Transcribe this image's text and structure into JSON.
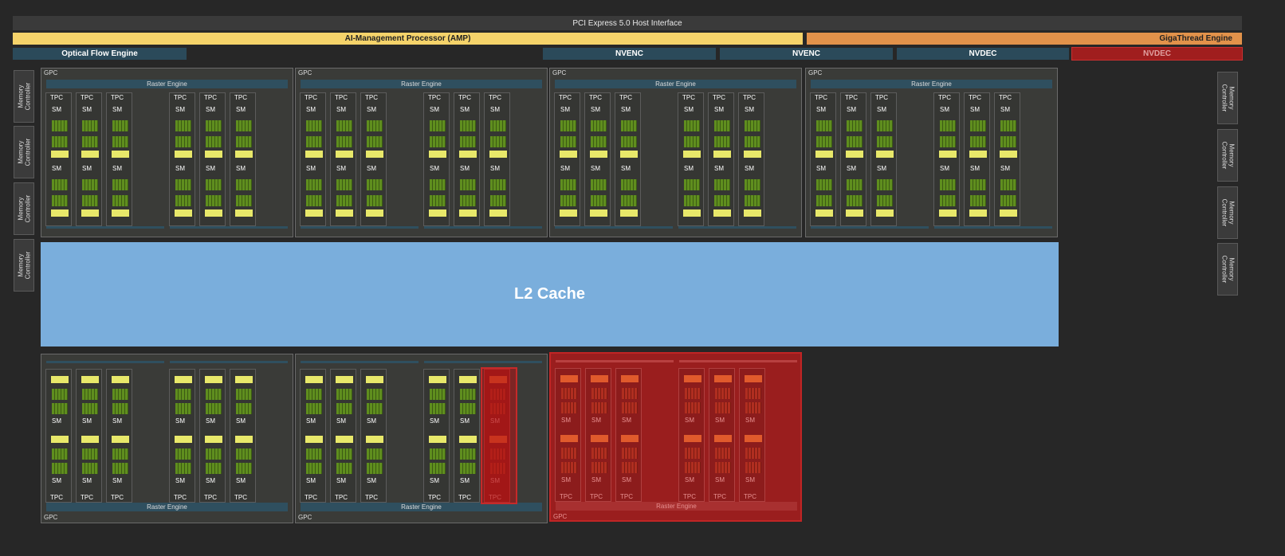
{
  "top": {
    "pcie": "PCI Express 5.0 Host Interface",
    "amp": "AI-Management Processor (AMP)",
    "gigathread": "GigaThread Engine",
    "optical_flow": "Optical Flow Engine",
    "engines": [
      "NVENC",
      "NVENC",
      "NVDEC",
      "NVDEC"
    ]
  },
  "memory_controller": "Memory\nController",
  "l2": "L2 Cache",
  "labels": {
    "gpc": "GPC",
    "raster": "Raster Engine",
    "tpc": "TPC",
    "sm": "SM"
  },
  "colors": {
    "background": "#272727",
    "amp": "#f5d36a",
    "gigathread": "#e2924a",
    "engine": "#2b4a5a",
    "disabled": "#a01e1e",
    "l2": "#7aaedc",
    "cuda_core": "#5f8e1e",
    "tensor_core": "#e8e86a"
  }
}
